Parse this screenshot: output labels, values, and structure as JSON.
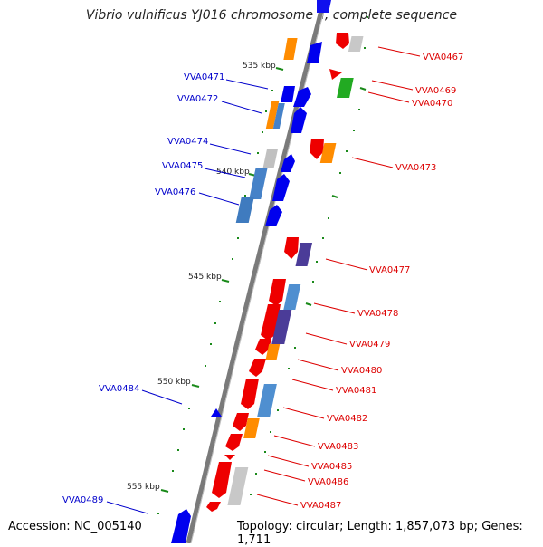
{
  "header": {
    "title": "Vibrio vulnificus YJ016 chromosome II, complete sequence"
  },
  "footer": {
    "accession": "Accession: NC_005140",
    "summary": "Topology: circular; Length: 1,857,073 bp; Genes: 1,711"
  },
  "ticks": [
    {
      "label": "535 kbp"
    },
    {
      "label": "540 kbp"
    },
    {
      "label": "545 kbp"
    },
    {
      "label": "550 kbp"
    },
    {
      "label": "555 kbp"
    }
  ],
  "genes_left": [
    {
      "label": "VVA0471"
    },
    {
      "label": "VVA0472"
    },
    {
      "label": "VVA0474"
    },
    {
      "label": "VVA0475"
    },
    {
      "label": "VVA0476"
    },
    {
      "label": "VVA0484"
    },
    {
      "label": "VVA0489"
    }
  ],
  "genes_right": [
    {
      "label": "VVA0467"
    },
    {
      "label": "VVA0469"
    },
    {
      "label": "VVA0470"
    },
    {
      "label": "VVA0473"
    },
    {
      "label": "VVA0477"
    },
    {
      "label": "VVA0478"
    },
    {
      "label": "VVA0479"
    },
    {
      "label": "VVA0480"
    },
    {
      "label": "VVA0481"
    },
    {
      "label": "VVA0482"
    },
    {
      "label": "VVA0483"
    },
    {
      "label": "VVA0485"
    },
    {
      "label": "VVA0486"
    },
    {
      "label": "VVA0487"
    }
  ],
  "colors": {
    "forward_label": "#0000cc",
    "reverse_label": "#dd0000",
    "forward_gene": "#0000ee",
    "reverse_gene": "#ee0000",
    "backbone": "#777777",
    "tick": "#1a8a1a"
  }
}
